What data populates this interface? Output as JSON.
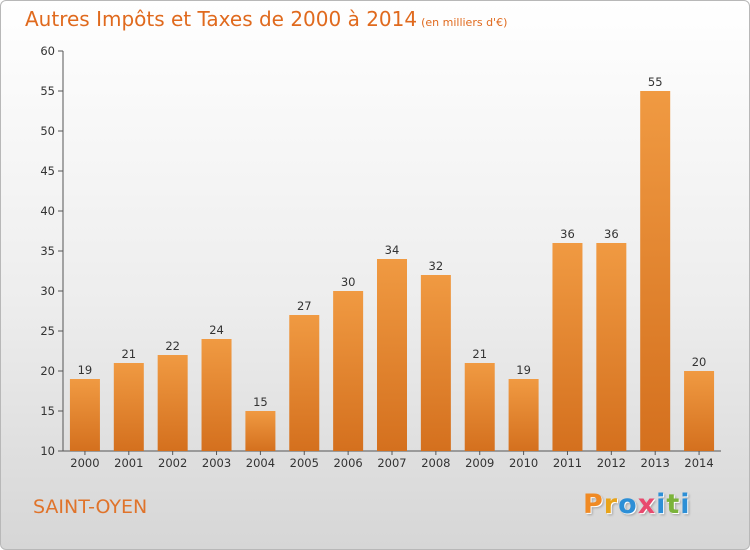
{
  "title": "Autres Impôts et Taxes de 2000 à 2014",
  "title_unit": "(en milliers d'€)",
  "commune": "SAINT-OYEN",
  "logo": {
    "text": "Proxiti",
    "colors": [
      "#f08a24",
      "#e8a319",
      "#2d8fd6",
      "#e84a6e",
      "#2d8fd6",
      "#7bb33a",
      "#2d8fd6"
    ]
  },
  "colors": {
    "bar": "#f09a42",
    "bar_dark": "#d4701e",
    "title": "#e06a1e",
    "axis": "#555555"
  },
  "chart_data": {
    "type": "bar",
    "title": "Autres Impôts et Taxes de 2000 à 2014",
    "subtitle": "(en milliers d'€)",
    "xlabel": "",
    "ylabel": "",
    "categories": [
      "2000",
      "2001",
      "2002",
      "2003",
      "2004",
      "2005",
      "2006",
      "2007",
      "2008",
      "2009",
      "2010",
      "2011",
      "2012",
      "2013",
      "2014"
    ],
    "values": [
      19,
      21,
      22,
      24,
      15,
      27,
      30,
      34,
      32,
      21,
      19,
      36,
      36,
      55,
      20
    ],
    "ylim": [
      10,
      60
    ],
    "yticks": [
      10,
      15,
      20,
      25,
      30,
      35,
      40,
      45,
      50,
      55,
      60
    ],
    "grid": false,
    "legend": "none"
  }
}
